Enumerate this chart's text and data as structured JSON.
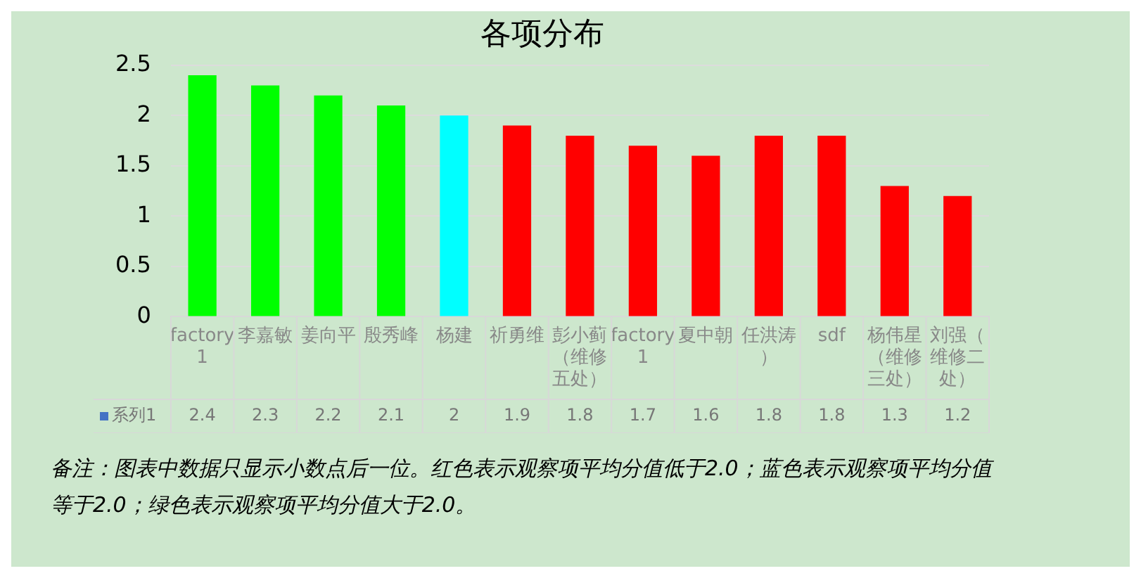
{
  "chart_data": {
    "type": "bar",
    "title": "各项分布",
    "categories": [
      "factory 1",
      "李嘉敏",
      "姜向平",
      "殷秀峰",
      "杨建",
      "祈勇维",
      "彭小蓟（维修五处）",
      "factory 1",
      "夏中朝",
      "任洪涛）",
      "sdf",
      "杨伟星（维修三处）",
      "刘强（维修二处）"
    ],
    "series": [
      {
        "name": "系列1",
        "color": "#4472c4",
        "colors": [
          "#00ff00",
          "#00ff00",
          "#00ff00",
          "#00ff00",
          "#00ffff",
          "#ff0000",
          "#ff0000",
          "#ff0000",
          "#ff0000",
          "#ff0000",
          "#ff0000",
          "#ff0000",
          "#ff0000"
        ],
        "values": [
          2.4,
          2.3,
          2.2,
          2.1,
          2,
          1.9,
          1.8,
          1.7,
          1.6,
          1.8,
          1.8,
          1.3,
          1.2
        ]
      }
    ],
    "ylim": [
      0,
      2.5
    ],
    "yticks": [
      0,
      0.5,
      1,
      1.5,
      2,
      2.5
    ],
    "grid": "y",
    "data_labels": true,
    "annotations": [
      "备注：图表中数据只显示小数点后一位。红色表示观察项平均分值低于2.0；蓝色表示观察项平均分值等于2.0；绿色表示观察项平均分值大于2.0。"
    ]
  }
}
